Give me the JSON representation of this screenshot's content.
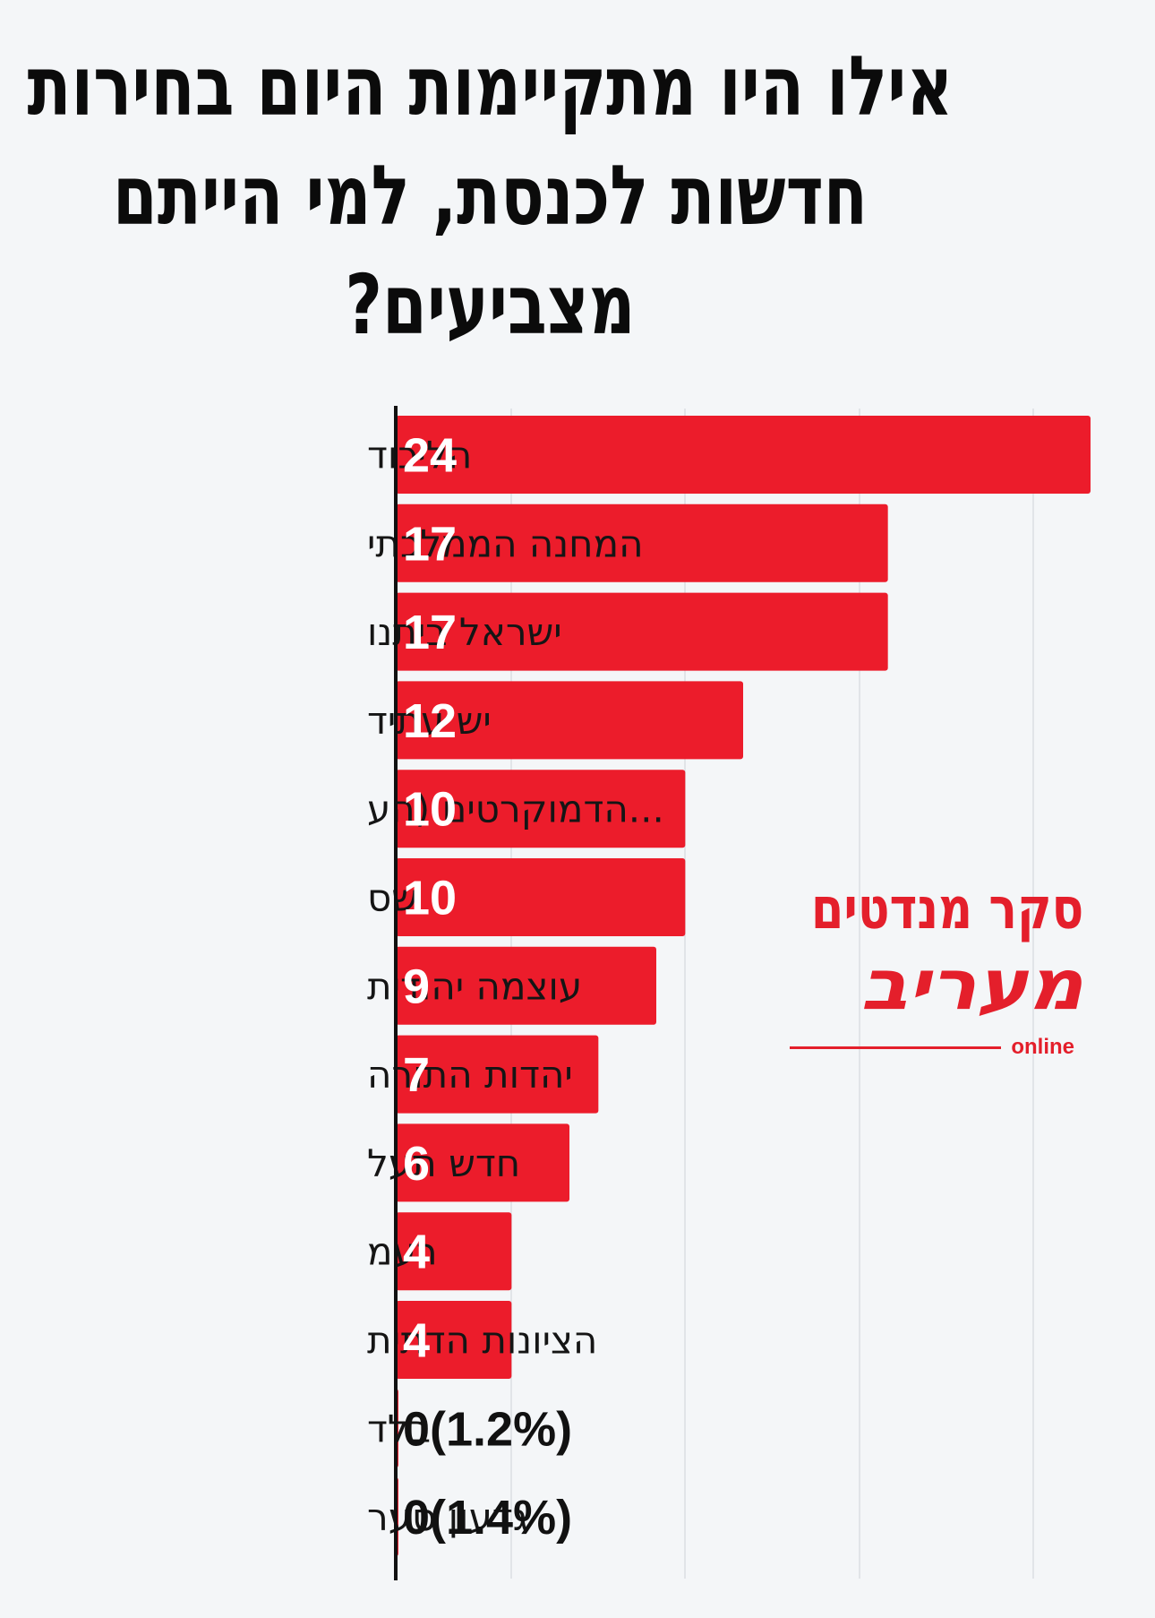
{
  "chart_data": {
    "type": "bar",
    "orientation": "horizontal",
    "title": "אילו היו מתקיימות היום בחירות חדשות לכנסת, למי הייתם מצביעים?",
    "categories": [
      "הליכוד",
      "המחנה הממלכתי",
      "ישראל ביתנו",
      "יש עתיד",
      "...הדמוקרטים (הע",
      "שס",
      "עוצמה יהודית",
      "יהדות התורה",
      "חדש תעל",
      "רעמ",
      "הציונות הדתית",
      "בלד",
      "גדעון סער"
    ],
    "values": [
      24,
      17,
      17,
      12,
      10,
      10,
      9,
      7,
      6,
      4,
      4,
      0,
      0
    ],
    "value_labels": [
      "24",
      "17",
      "17",
      "12",
      "10",
      "10",
      "9",
      "7",
      "6",
      "4",
      "4",
      "0(1.2%)",
      "0(1.4%)"
    ],
    "xlim": [
      0,
      24
    ],
    "xlabel": "",
    "ylabel": "",
    "grid": true
  },
  "logo": {
    "top_text": "סקר מנדטים",
    "brand": "מעריב",
    "sub": "online"
  },
  "colors": {
    "bar": "#ec1c2b",
    "label_inside": "#ffffff",
    "label_outside": "#111111",
    "axis": "#111111",
    "grid": "#e1e4e8"
  }
}
